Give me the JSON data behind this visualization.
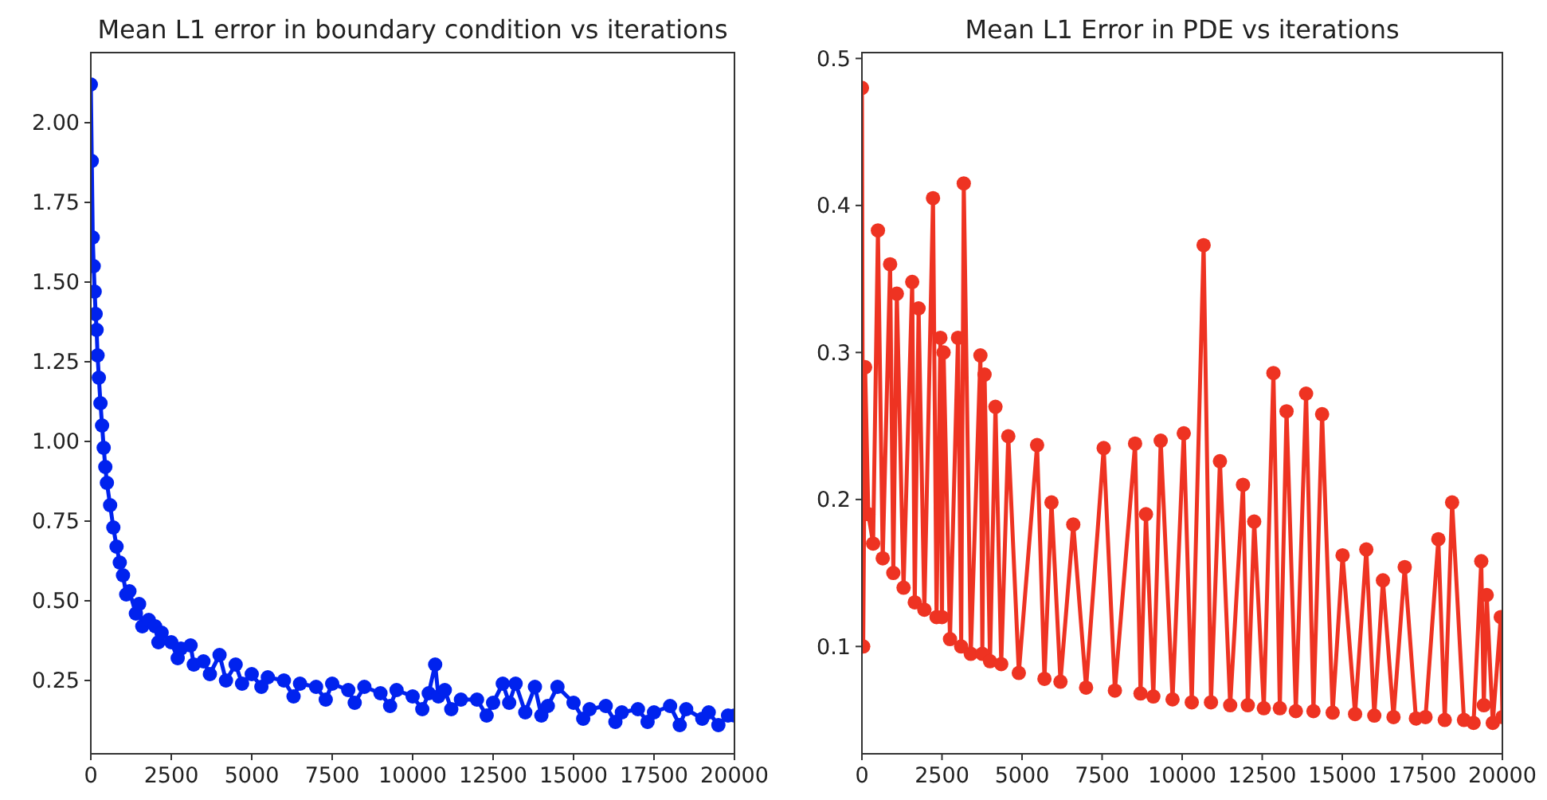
{
  "chart_data": [
    {
      "type": "line",
      "title": "Mean L1 error in boundary condition vs iterations",
      "marker": "circle",
      "line_style": "solid",
      "grid": false,
      "xlim": [
        0,
        20000
      ],
      "ylim": [
        0.02,
        2.22
      ],
      "xticks": [
        0,
        2500,
        5000,
        7500,
        10000,
        12500,
        15000,
        17500,
        20000
      ],
      "yticks": [
        {
          "value": 0.25,
          "label": "0.25"
        },
        {
          "value": 0.5,
          "label": "0.50"
        },
        {
          "value": 0.75,
          "label": "0.75"
        },
        {
          "value": 1,
          "label": "1.00"
        },
        {
          "value": 1.25,
          "label": "1.25"
        },
        {
          "value": 1.5,
          "label": "1.50"
        },
        {
          "value": 1.75,
          "label": "1.75"
        },
        {
          "value": 2,
          "label": "2.00"
        }
      ],
      "series": [
        {
          "color": "#0022ee",
          "x": [
            0,
            30,
            60,
            90,
            120,
            150,
            180,
            210,
            250,
            300,
            350,
            400,
            450,
            500,
            600,
            700,
            800,
            900,
            1000,
            1100,
            1200,
            1400,
            1500,
            1600,
            1800,
            2000,
            2100,
            2200,
            2500,
            2700,
            2800,
            3100,
            3200,
            3500,
            3700,
            4000,
            4200,
            4500,
            4700,
            5000,
            5300,
            5500,
            6000,
            6300,
            6500,
            7000,
            7300,
            7500,
            8000,
            8200,
            8500,
            9000,
            9300,
            9500,
            10000,
            10300,
            10500,
            10700,
            10800,
            11000,
            11200,
            11500,
            12000,
            12300,
            12500,
            12800,
            13000,
            13200,
            13500,
            13800,
            14000,
            14200,
            14500,
            15000,
            15300,
            15500,
            16000,
            16300,
            16500,
            17000,
            17300,
            17500,
            18000,
            18300,
            18500,
            19000,
            19200,
            19500,
            19800,
            20000
          ],
          "values": [
            2.12,
            1.88,
            1.64,
            1.55,
            1.47,
            1.4,
            1.35,
            1.27,
            1.2,
            1.12,
            1.05,
            0.98,
            0.92,
            0.87,
            0.8,
            0.73,
            0.67,
            0.62,
            0.58,
            0.52,
            0.53,
            0.46,
            0.49,
            0.42,
            0.44,
            0.42,
            0.37,
            0.4,
            0.37,
            0.32,
            0.35,
            0.36,
            0.3,
            0.31,
            0.27,
            0.33,
            0.25,
            0.3,
            0.24,
            0.27,
            0.23,
            0.26,
            0.25,
            0.2,
            0.24,
            0.23,
            0.19,
            0.24,
            0.22,
            0.18,
            0.23,
            0.21,
            0.17,
            0.22,
            0.2,
            0.16,
            0.21,
            0.3,
            0.2,
            0.22,
            0.16,
            0.19,
            0.19,
            0.14,
            0.18,
            0.24,
            0.18,
            0.24,
            0.15,
            0.23,
            0.14,
            0.17,
            0.23,
            0.18,
            0.13,
            0.16,
            0.17,
            0.12,
            0.15,
            0.16,
            0.12,
            0.15,
            0.17,
            0.11,
            0.16,
            0.13,
            0.15,
            0.11,
            0.14,
            0.14
          ]
        }
      ]
    },
    {
      "type": "line",
      "title": "Mean L1 Error in PDE vs iterations",
      "marker": "circle",
      "line_style": "solid",
      "grid": false,
      "xlim": [
        0,
        20000
      ],
      "ylim": [
        0.027,
        0.504
      ],
      "xticks": [
        0,
        2500,
        5000,
        7500,
        10000,
        12500,
        15000,
        17500,
        20000
      ],
      "yticks": [
        0.1,
        0.2,
        0.3,
        0.4,
        0.5
      ],
      "series": [
        {
          "color": "#ee3322",
          "x": [
            0,
            40,
            100,
            200,
            350,
            500,
            650,
            880,
            980,
            1090,
            1300,
            1570,
            1650,
            1770,
            1950,
            2220,
            2330,
            2450,
            2500,
            2550,
            2750,
            3000,
            3100,
            3180,
            3400,
            3700,
            3760,
            3830,
            4000,
            4170,
            4350,
            4570,
            4900,
            5470,
            5700,
            5920,
            6200,
            6600,
            7000,
            7550,
            7900,
            8530,
            8700,
            8870,
            9100,
            9330,
            9700,
            10050,
            10300,
            10670,
            10900,
            11180,
            11500,
            11900,
            12050,
            12250,
            12550,
            12850,
            13050,
            13260,
            13550,
            13870,
            14100,
            14370,
            14700,
            15010,
            15400,
            15750,
            16000,
            16270,
            16600,
            16950,
            17300,
            17600,
            18000,
            18200,
            18430,
            18800,
            19100,
            19340,
            19420,
            19510,
            19700,
            19950,
            20000
          ],
          "values": [
            0.48,
            0.1,
            0.29,
            0.19,
            0.17,
            0.383,
            0.16,
            0.36,
            0.15,
            0.34,
            0.14,
            0.348,
            0.13,
            0.33,
            0.125,
            0.405,
            0.12,
            0.31,
            0.12,
            0.3,
            0.105,
            0.31,
            0.1,
            0.415,
            0.095,
            0.298,
            0.095,
            0.285,
            0.09,
            0.263,
            0.088,
            0.243,
            0.082,
            0.237,
            0.078,
            0.198,
            0.076,
            0.183,
            0.072,
            0.235,
            0.07,
            0.238,
            0.068,
            0.19,
            0.066,
            0.24,
            0.064,
            0.245,
            0.062,
            0.373,
            0.062,
            0.226,
            0.06,
            0.21,
            0.06,
            0.185,
            0.058,
            0.286,
            0.058,
            0.26,
            0.056,
            0.272,
            0.056,
            0.258,
            0.055,
            0.162,
            0.054,
            0.166,
            0.053,
            0.145,
            0.052,
            0.154,
            0.051,
            0.052,
            0.173,
            0.05,
            0.198,
            0.05,
            0.048,
            0.158,
            0.06,
            0.135,
            0.048,
            0.12,
            0.052
          ]
        }
      ]
    }
  ]
}
